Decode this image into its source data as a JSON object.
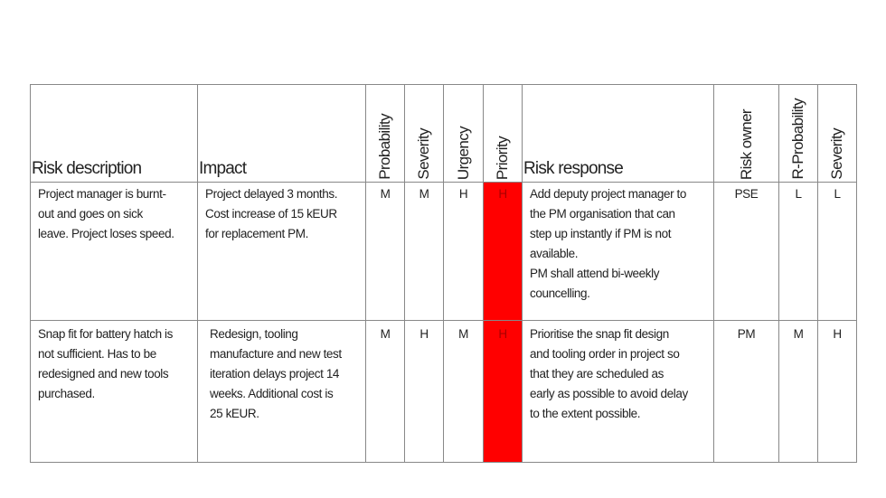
{
  "headers": [
    "Risk description",
    "Impact",
    "Probability",
    "Severity",
    "Urgency",
    "Priority",
    "Risk response",
    "Risk owner",
    "R-Probability",
    "Severity"
  ],
  "priority_color": "#ff0000",
  "rows": [
    {
      "description": "Project manager is burnt-\nout and goes on sick\nleave. Project loses speed.",
      "impact": "Project delayed 3 months.\nCost increase of 15 kEUR\nfor replacement PM.",
      "probability": "M",
      "severity": "M",
      "urgency": "H",
      "priority": "H",
      "response": "Add deputy project manager to\nthe PM organisation that can\nstep up instantly if PM is not\navailable.\nPM shall attend bi-weekly\ncouncelling.",
      "owner": "PSE",
      "r_probability": "L",
      "r_severity": "L"
    },
    {
      "description": "Snap fit for battery hatch is\nnot sufficient. Has to be\nredesigned and new tools\npurchased.",
      "impact": "Redesign, tooling\nmanufacture and new test\niteration delays project 14\nweeks. Additional cost is\n25 kEUR.",
      "probability": "M",
      "severity": "H",
      "urgency": "M",
      "priority": "H",
      "response": "Prioritise the snap fit design\nand tooling order in project so\nthat they are scheduled as\nearly as possible to avoid delay\nto the extent possible.",
      "owner": "PM",
      "r_probability": "M",
      "r_severity": "H"
    }
  ]
}
